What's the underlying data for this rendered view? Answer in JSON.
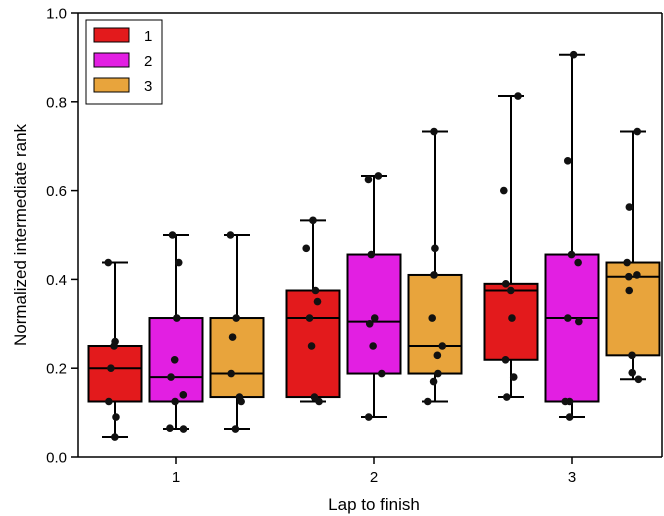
{
  "chart_data": {
    "type": "boxplot",
    "title": "",
    "xlabel": "Lap to finish",
    "ylabel": "Normalized intermediate rank",
    "ylim": [
      0.0,
      1.0
    ],
    "yticks": [
      "0.0",
      "0.2",
      "0.4",
      "0.6",
      "0.8",
      "1.0"
    ],
    "categories": [
      "1",
      "2",
      "3"
    ],
    "legend_position": "top-left",
    "series": [
      {
        "name": "1",
        "color": "#e31a1c",
        "boxes": [
          {
            "whisker_low": 0.045,
            "q1": 0.125,
            "median": 0.2,
            "q3": 0.25,
            "whisker_high": 0.438,
            "points": [
              0.045,
              0.09,
              0.125,
              0.2,
              0.25,
              0.26,
              0.438
            ]
          },
          {
            "whisker_low": 0.125,
            "q1": 0.135,
            "median": 0.313,
            "q3": 0.375,
            "whisker_high": 0.533,
            "points": [
              0.125,
              0.135,
              0.25,
              0.313,
              0.35,
              0.375,
              0.47,
              0.533
            ]
          },
          {
            "whisker_low": 0.135,
            "q1": 0.219,
            "median": 0.375,
            "q3": 0.39,
            "whisker_high": 0.813,
            "points": [
              0.135,
              0.18,
              0.219,
              0.313,
              0.375,
              0.39,
              0.6,
              0.813
            ]
          }
        ]
      },
      {
        "name": "2",
        "color": "#e21fe2",
        "boxes": [
          {
            "whisker_low": 0.063,
            "q1": 0.125,
            "median": 0.18,
            "q3": 0.313,
            "whisker_high": 0.5,
            "points": [
              0.063,
              0.065,
              0.125,
              0.14,
              0.18,
              0.219,
              0.313,
              0.438,
              0.5
            ]
          },
          {
            "whisker_low": 0.09,
            "q1": 0.188,
            "median": 0.305,
            "q3": 0.456,
            "whisker_high": 0.633,
            "points": [
              0.09,
              0.188,
              0.25,
              0.3,
              0.313,
              0.456,
              0.625,
              0.633
            ]
          },
          {
            "whisker_low": 0.09,
            "q1": 0.125,
            "median": 0.313,
            "q3": 0.456,
            "whisker_high": 0.906,
            "points": [
              0.09,
              0.125,
              0.125,
              0.305,
              0.313,
              0.438,
              0.456,
              0.667,
              0.906
            ]
          }
        ]
      },
      {
        "name": "3",
        "color": "#e8a43c",
        "boxes": [
          {
            "whisker_low": 0.063,
            "q1": 0.135,
            "median": 0.188,
            "q3": 0.313,
            "whisker_high": 0.5,
            "points": [
              0.063,
              0.125,
              0.135,
              0.188,
              0.27,
              0.313,
              0.5
            ]
          },
          {
            "whisker_low": 0.125,
            "q1": 0.188,
            "median": 0.25,
            "q3": 0.41,
            "whisker_high": 0.733,
            "points": [
              0.125,
              0.17,
              0.188,
              0.229,
              0.25,
              0.313,
              0.41,
              0.47,
              0.733
            ]
          },
          {
            "whisker_low": 0.175,
            "q1": 0.229,
            "median": 0.406,
            "q3": 0.438,
            "whisker_high": 0.733,
            "points": [
              0.175,
              0.19,
              0.229,
              0.375,
              0.406,
              0.41,
              0.438,
              0.563,
              0.733
            ]
          }
        ]
      }
    ]
  }
}
